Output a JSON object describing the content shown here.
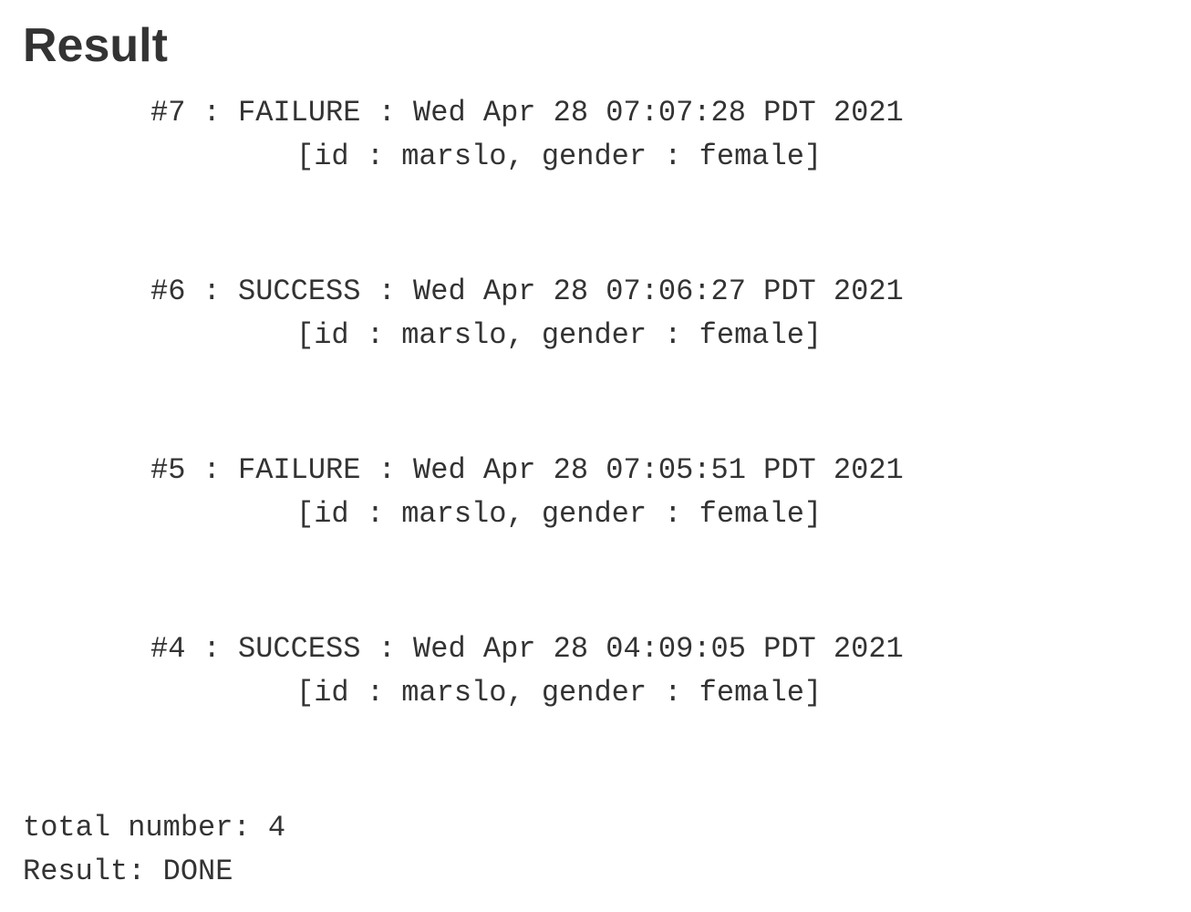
{
  "title": "Result",
  "entries": [
    {
      "number": "#7",
      "status": "FAILURE",
      "timestamp": "Wed Apr 28 07:07:28 PDT 2021",
      "details": "[id : marslo, gender : female]"
    },
    {
      "number": "#6",
      "status": "SUCCESS",
      "timestamp": "Wed Apr 28 07:06:27 PDT 2021",
      "details": "[id : marslo, gender : female]"
    },
    {
      "number": "#5",
      "status": "FAILURE",
      "timestamp": "Wed Apr 28 07:05:51 PDT 2021",
      "details": "[id : marslo, gender : female]"
    },
    {
      "number": "#4",
      "status": "SUCCESS",
      "timestamp": "Wed Apr 28 04:09:05 PDT 2021",
      "details": "[id : marslo, gender : female]"
    }
  ],
  "summary": {
    "total_label": "total number:",
    "total_value": "4",
    "result_label": "Result:",
    "result_value": "DONE"
  },
  "styling": {
    "title_color": "#333333",
    "text_color": "#333333",
    "background_color": "#ffffff",
    "title_fontsize": 52,
    "body_fontsize": 32,
    "body_font": "monospace"
  }
}
